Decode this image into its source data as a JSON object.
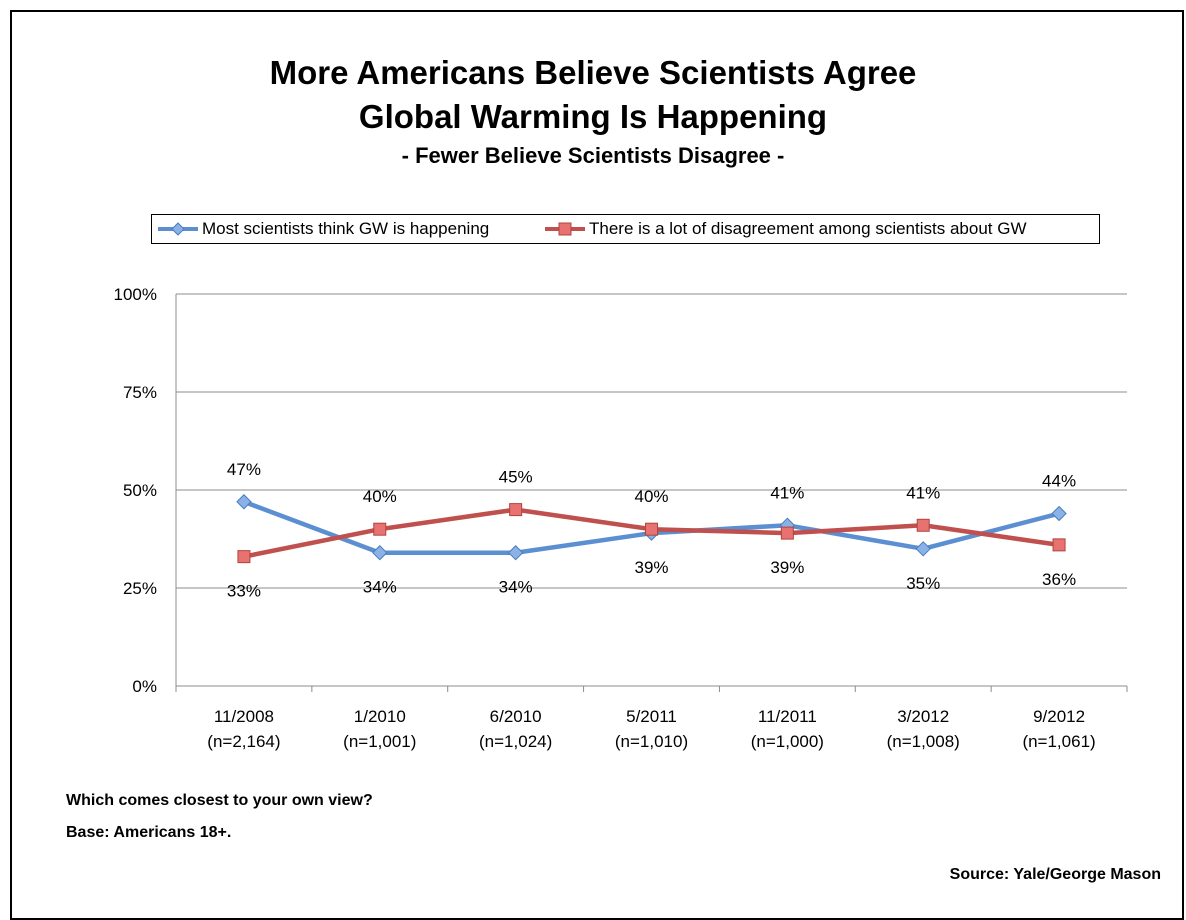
{
  "chart_data": {
    "type": "line",
    "title": "More Americans Believe Scientists Agree Global Warming Is Happening",
    "title_lines": [
      "More Americans Believe Scientists Agree",
      "Global Warming Is Happening"
    ],
    "subtitle": "- Fewer Believe Scientists Disagree -",
    "categories": [
      "11/2008",
      "1/2010",
      "6/2010",
      "5/2011",
      "11/2011",
      "3/2012",
      "9/2012"
    ],
    "sample_sizes": [
      "(n=2,164)",
      "(n=1,001)",
      "(n=1,024)",
      "(n=1,010)",
      "(n=1,000)",
      "(n=1,008)",
      "(n=1,061)"
    ],
    "series": [
      {
        "name": "Most scientists think GW is happening",
        "values": [
          47,
          34,
          34,
          39,
          41,
          35,
          44
        ],
        "labels": [
          "47%",
          "34%",
          "34%",
          "39%",
          "41%",
          "35%",
          "44%"
        ],
        "label_positions": [
          "above",
          "below",
          "below",
          "below",
          "above",
          "below",
          "above"
        ],
        "color": "#5b8fd1",
        "marker": "diamond",
        "marker_fill": "#8ab2e6",
        "marker_stroke": "#4a7cbf"
      },
      {
        "name": "There is a lot of disagreement among scientists about GW",
        "values": [
          33,
          40,
          45,
          40,
          39,
          41,
          36
        ],
        "labels": [
          "33%",
          "40%",
          "45%",
          "40%",
          "39%",
          "41%",
          "36%"
        ],
        "label_positions": [
          "below",
          "above",
          "above",
          "above",
          "below",
          "above",
          "below"
        ],
        "color": "#c0504d",
        "marker": "square",
        "marker_fill": "#e8726f",
        "marker_stroke": "#b04440"
      }
    ],
    "ylim": [
      0,
      100
    ],
    "yticks": [
      0,
      25,
      50,
      75,
      100
    ],
    "ytick_labels": [
      "0%",
      "25%",
      "50%",
      "75%",
      "100%"
    ],
    "grid": true,
    "legend_position": "top"
  },
  "notes": {
    "question": "Which comes closest to your own view?",
    "base": "Base: Americans 18+."
  },
  "source": "Source: Yale/George Mason"
}
